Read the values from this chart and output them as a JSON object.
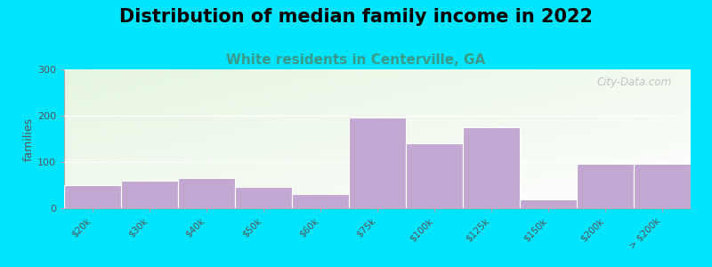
{
  "title": "Distribution of median family income in 2022",
  "subtitle": "White residents in Centerville, GA",
  "categories": [
    "$20k",
    "$30k",
    "$40k",
    "$50k",
    "$60k",
    "$75k",
    "$100k",
    "$125k",
    "$150k",
    "$200k",
    "> $200k"
  ],
  "values": [
    50,
    60,
    65,
    47,
    30,
    197,
    140,
    175,
    20,
    97,
    97
  ],
  "bar_color": "#c4a8d4",
  "bar_edge_color": "#ffffff",
  "background_outer": "#00e5ff",
  "ylabel": "families",
  "ylim": [
    0,
    300
  ],
  "yticks": [
    0,
    100,
    200,
    300
  ],
  "title_fontsize": 15,
  "subtitle_fontsize": 11,
  "subtitle_color": "#3a9a8a",
  "watermark": "City-Data.com",
  "watermark_color": "#bbbbbb",
  "tick_color": "#555555",
  "spine_color": "#aaaaaa"
}
